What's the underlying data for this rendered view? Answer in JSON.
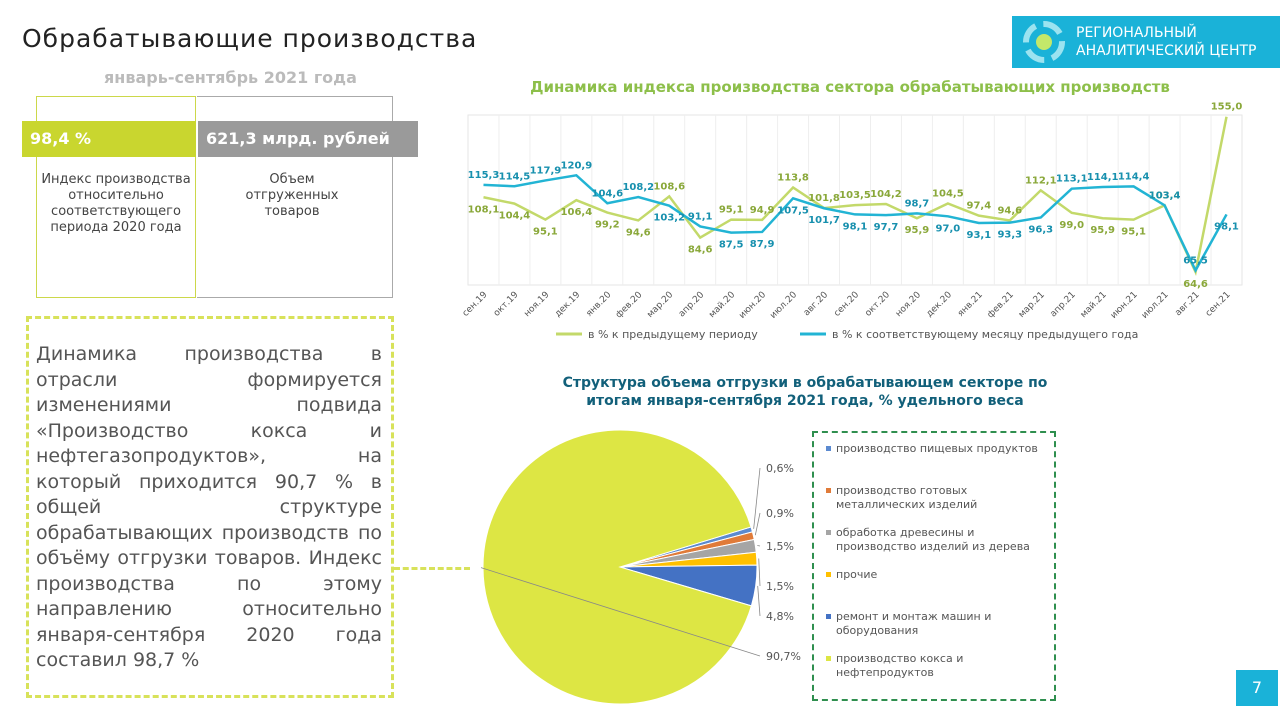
{
  "header": {
    "title": "Обрабатывающие производства",
    "period": "январь-сентябрь 2021 года",
    "logo_line1": "РЕГИОНАЛЬНЫЙ",
    "logo_line2": "АНАЛИТИЧЕСКИЙ ЦЕНТР"
  },
  "kpis": [
    {
      "value": "98,4 %",
      "caption": "Индекс производства относительно соответствующего периода 2020 года"
    },
    {
      "value": "621,3 млрд. рублей",
      "caption": "Объем отгруженных товаров"
    }
  ],
  "text": "Динамика производства в отрасли формируется изменениями подвида «Производство кокса и нефтегазопродуктов», на который приходится 90,7 % в общей структуре обрабатывающих производств по объёму отгрузки товаров. Индекс производства по этому направлению относительно января-сентября 2020 года составил 98,7 %",
  "page_number": "7",
  "chart_data": [
    {
      "type": "line",
      "title": "Динамика индекса производства сектора обрабатывающих производств",
      "categories": [
        "сен.19",
        "окт.19",
        "ноя.19",
        "дек.19",
        "янв.20",
        "фев.20",
        "мар.20",
        "апр.20",
        "май.20",
        "июн.20",
        "июл.20",
        "авг.20",
        "сен.20",
        "окт.20",
        "ноя.20",
        "дек.20",
        "янв.21",
        "фев.21",
        "мар.21",
        "апр.21",
        "май.21",
        "июн.21",
        "июл.21",
        "авг.21",
        "сен.21"
      ],
      "ylim": [
        57,
        156
      ],
      "series": [
        {
          "name": "в % к предыдущему периоду",
          "color": "#c3d96a",
          "values": [
            108.1,
            104.4,
            95.1,
            106.4,
            99.2,
            94.6,
            108.6,
            84.6,
            95.1,
            94.9,
            113.8,
            101.8,
            103.5,
            104.2,
            95.9,
            104.5,
            97.4,
            94.6,
            112.1,
            99.0,
            95.9,
            95.1,
            103.4,
            64.6,
            155.0
          ],
          "value_labels": [
            "108,1",
            "104,4",
            "95,1",
            "106,4",
            "99,2",
            "94,6",
            "108,6",
            "84,6",
            "95,1",
            "94,9",
            "113,8",
            "101,8",
            "103,5",
            "104,2",
            "95,9",
            "104,5",
            "97,4",
            "94,6",
            "112,1",
            "99,0",
            "95,9",
            "95,1",
            "103,4",
            "64,6",
            "155,0"
          ]
        },
        {
          "name": "в % к соответствующему месяцу предыдущего года",
          "color": "#22b4d4",
          "values": [
            115.3,
            114.5,
            117.9,
            120.9,
            104.6,
            108.2,
            103.2,
            91.1,
            87.5,
            87.9,
            107.5,
            101.7,
            98.1,
            97.7,
            98.7,
            97.0,
            93.1,
            93.3,
            96.3,
            113.1,
            114.1,
            114.4,
            103.4,
            65.5,
            98.1
          ],
          "value_labels": [
            "115,3",
            "114,5",
            "117,9",
            "120,9",
            "104,6",
            "108,2",
            "103,2",
            "91,1",
            "87,5",
            "87,9",
            "107,5",
            "101,7",
            "98,1",
            "97,7",
            "98,7",
            "97,0",
            "93,1",
            "93,3",
            "96,3",
            "113,1",
            "114,1",
            "114,4",
            "103,4",
            "65,5",
            "98,1"
          ]
        }
      ]
    },
    {
      "type": "pie",
      "title": "Структура объема отгрузки в обрабатывающем секторе по итогам января-сентября 2021 года, % удельного веса",
      "categories": [
        "производство пищевых продуктов",
        "производство готовых металлических изделий",
        "обработка древесины и производство изделий из дерева",
        "прочие",
        "ремонт и монтаж машин и оборудования",
        "производство кокса и нефтепродуктов"
      ],
      "values": [
        0.6,
        0.9,
        1.5,
        1.5,
        4.8,
        90.7
      ],
      "value_labels": [
        "0,6%",
        "0,9%",
        "1,5%",
        "1,5%",
        "4,8%",
        "90,7%"
      ],
      "colors": [
        "#5b8ad0",
        "#e07b39",
        "#a5a5a5",
        "#ffc000",
        "#4472c4",
        "#dde644"
      ]
    }
  ]
}
